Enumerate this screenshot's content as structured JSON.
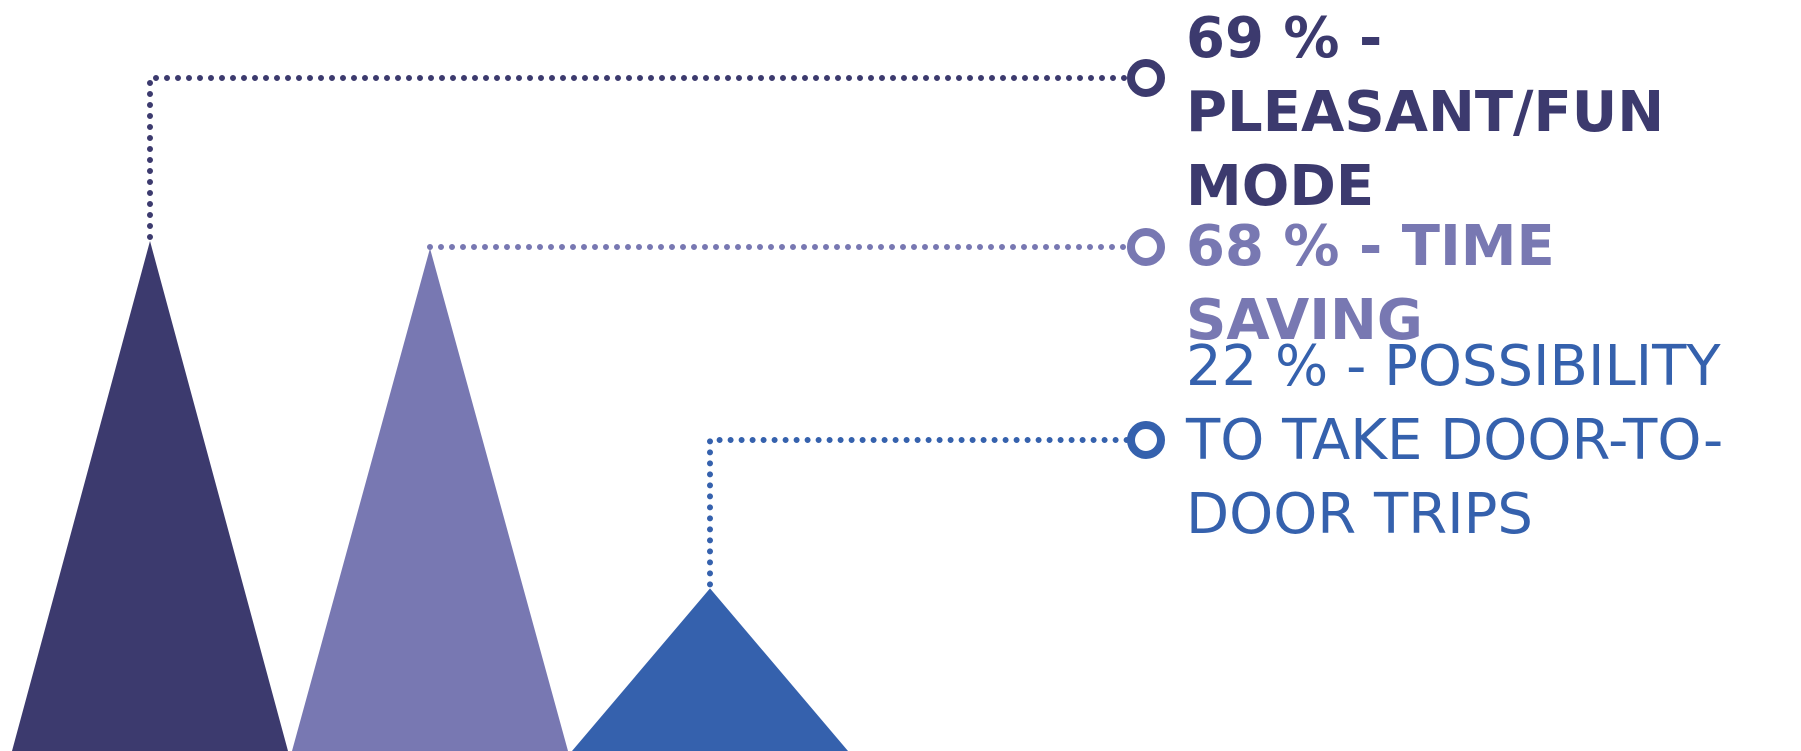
{
  "chart_data": {
    "type": "bar",
    "categories": [
      "PLEASANT/FUN MODE",
      "TIME SAVING",
      "POSSIBILITY TO TAKE DOOR-TO-DOOR TRIPS"
    ],
    "values": [
      69,
      68,
      22
    ],
    "unit": "%",
    "labels": [
      "69 % - PLEASANT/FUN MODE",
      "68 % - TIME SAVING",
      "22 % - POSSIBILITY TO TAKE DOOR-TO-DOOR TRIPS"
    ],
    "colors": [
      "#3c3a6e",
      "#7878b2",
      "#3561ad"
    ],
    "marker_shape": "triangle",
    "connector_style": "dotted",
    "ylim": [
      0,
      69
    ],
    "grid": false,
    "legend": "none"
  }
}
